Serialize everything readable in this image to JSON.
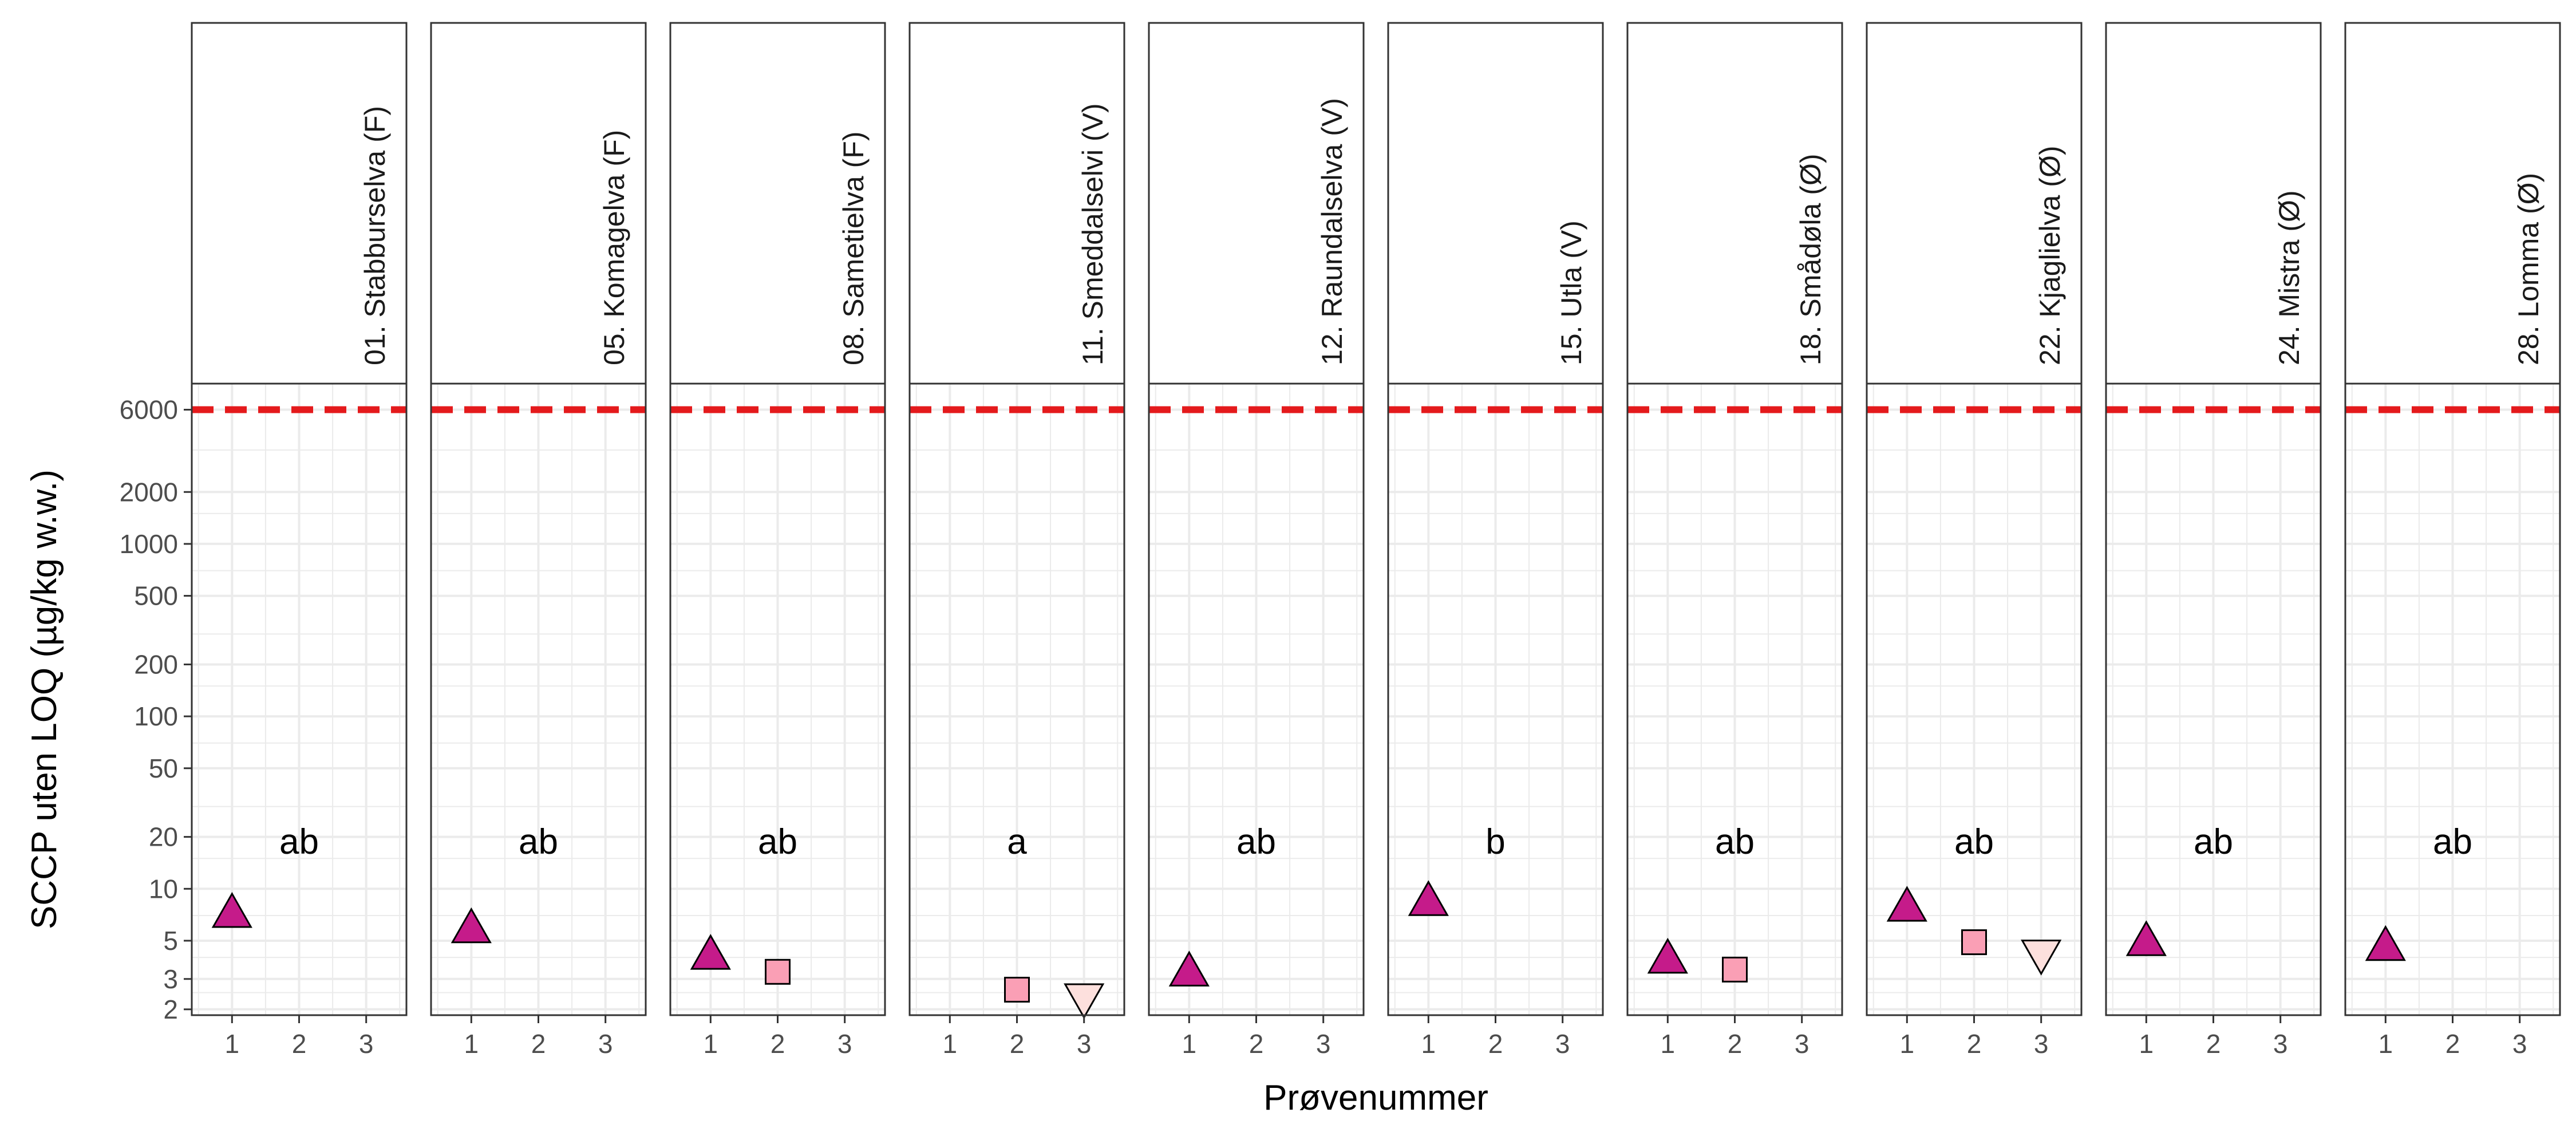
{
  "chart_data": {
    "type": "scatter",
    "facet_type": "small-multiples",
    "xlabel": "Prøvenummer",
    "ylabel": "SCCP uten LOQ (µg/kg w.w.)",
    "y_scale": "log",
    "ylim": [
      1.85,
      8500
    ],
    "y_ticks": [
      "2",
      "3",
      "5",
      "10",
      "20",
      "50",
      "100",
      "200",
      "500",
      "1000",
      "2000",
      "6000"
    ],
    "x_ticks": [
      "1",
      "2",
      "3"
    ],
    "xlim": [
      0.4,
      3.6
    ],
    "grid": true,
    "reference_line": {
      "value": 6000,
      "color": "#e41a1c",
      "style": "dashed"
    },
    "colors": {
      "triangle_up": "#c51b8a",
      "square": "#fa9fb5",
      "triangle_down": "#fde0dd",
      "point_outline": "#000000",
      "panel_border": "#333333",
      "grid": "#ebebeb"
    },
    "facets": [
      {
        "label": "01. Stabburselva (F)",
        "group_letter": "ab",
        "points": [
          {
            "x": 1,
            "y": 7,
            "shape": "triangle-up"
          }
        ]
      },
      {
        "label": "05. Komagelva (F)",
        "group_letter": "ab",
        "points": [
          {
            "x": 1,
            "y": 5.7,
            "shape": "triangle-up"
          }
        ]
      },
      {
        "label": "08. Sametielva (F)",
        "group_letter": "ab",
        "points": [
          {
            "x": 1,
            "y": 4,
            "shape": "triangle-up"
          },
          {
            "x": 2,
            "y": 3.3,
            "shape": "square"
          }
        ]
      },
      {
        "label": "11. Smeddalselvi (V)",
        "group_letter": "a",
        "points": [
          {
            "x": 2,
            "y": 2.6,
            "shape": "square"
          },
          {
            "x": 3,
            "y": 2.4,
            "shape": "triangle-down"
          }
        ]
      },
      {
        "label": "12. Raundalselva (V)",
        "group_letter": "ab",
        "points": [
          {
            "x": 1,
            "y": 3.2,
            "shape": "triangle-up"
          }
        ]
      },
      {
        "label": "15. Utla (V)",
        "group_letter": "b",
        "points": [
          {
            "x": 1,
            "y": 8.2,
            "shape": "triangle-up"
          }
        ]
      },
      {
        "label": "18. Smådøla (Ø)",
        "group_letter": "ab",
        "points": [
          {
            "x": 1,
            "y": 3.8,
            "shape": "triangle-up"
          },
          {
            "x": 2,
            "y": 3.4,
            "shape": "square"
          }
        ]
      },
      {
        "label": "22. Kjaglielva (Ø)",
        "group_letter": "ab",
        "points": [
          {
            "x": 1,
            "y": 7.6,
            "shape": "triangle-up"
          },
          {
            "x": 2,
            "y": 4.9,
            "shape": "square"
          },
          {
            "x": 3,
            "y": 4.3,
            "shape": "triangle-down"
          }
        ]
      },
      {
        "label": "24. Mistra (Ø)",
        "group_letter": "ab",
        "points": [
          {
            "x": 1,
            "y": 4.8,
            "shape": "triangle-up"
          }
        ]
      },
      {
        "label": "28. Lomma (Ø)",
        "group_letter": "ab",
        "points": [
          {
            "x": 1,
            "y": 4.5,
            "shape": "triangle-up"
          }
        ]
      }
    ]
  }
}
